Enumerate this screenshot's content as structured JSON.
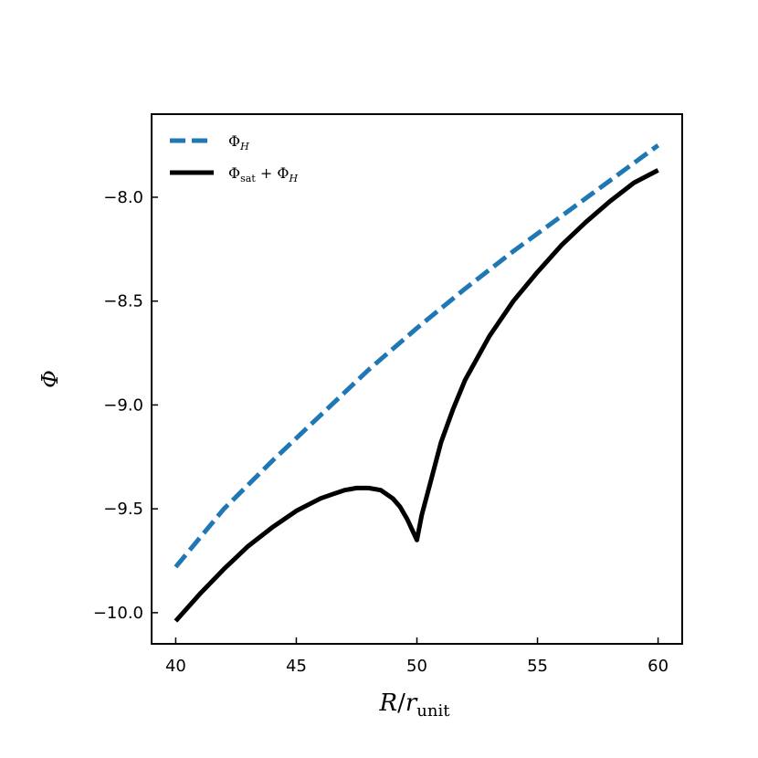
{
  "chart_data": {
    "type": "line",
    "xlabel": {
      "main": "R",
      "slash": "/",
      "var": "r",
      "sub": "unit"
    },
    "ylabel": "Φ",
    "xlim": [
      39,
      61
    ],
    "ylim": [
      -10.15,
      -7.6
    ],
    "xticks": [
      40,
      45,
      50,
      55,
      60
    ],
    "xtick_labels": [
      "40",
      "45",
      "50",
      "55",
      "60"
    ],
    "yticks": [
      -10.0,
      -9.5,
      -9.0,
      -8.5,
      -8.0
    ],
    "ytick_labels": [
      "−10.0",
      "−9.5",
      "−9.0",
      "−8.5",
      "−8.0"
    ],
    "grid": false,
    "legend_position": "top-left",
    "series": [
      {
        "name": "Φ_H",
        "legend": {
          "base": "Φ",
          "sub": "H"
        },
        "color": "#1f77b4",
        "style": "dashed",
        "x": [
          40,
          42,
          44,
          46,
          48,
          50,
          52,
          54,
          56,
          58,
          60
        ],
        "y": [
          -9.78,
          -9.5,
          -9.27,
          -9.05,
          -8.83,
          -8.63,
          -8.44,
          -8.26,
          -8.09,
          -7.92,
          -7.75
        ]
      },
      {
        "name": "Φ_sat + Φ_H",
        "legend": {
          "base": "Φ",
          "sub": "sat",
          "plus": " + ",
          "base2": "Φ",
          "sub2": "H"
        },
        "color": "#000000",
        "style": "solid",
        "x": [
          40,
          41,
          42,
          43,
          44,
          45,
          46,
          46.5,
          47,
          47.5,
          48,
          48.5,
          49,
          49.3,
          49.6,
          49.8,
          50,
          50.2,
          50.5,
          51,
          51.5,
          52,
          53,
          54,
          55,
          56,
          57,
          58,
          59,
          60
        ],
        "y": [
          -10.04,
          -9.91,
          -9.79,
          -9.68,
          -9.59,
          -9.51,
          -9.45,
          -9.43,
          -9.41,
          -9.4,
          -9.4,
          -9.41,
          -9.45,
          -9.49,
          -9.55,
          -9.6,
          -9.65,
          -9.53,
          -9.4,
          -9.18,
          -9.02,
          -8.88,
          -8.67,
          -8.5,
          -8.36,
          -8.23,
          -8.12,
          -8.02,
          -7.93,
          -7.87
        ]
      }
    ]
  }
}
